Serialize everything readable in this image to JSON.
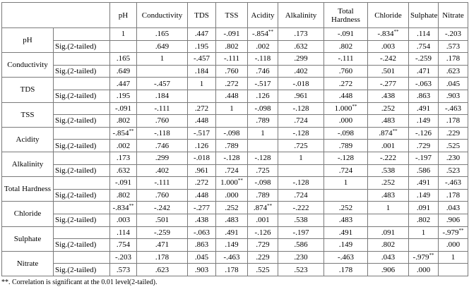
{
  "table": {
    "columns": [
      "pH",
      "Conductivity",
      "TDS",
      "TSS",
      "Acidity",
      "Alkalinity",
      "Total Hardness",
      "Chloride",
      "Sulphate",
      "Nitrate"
    ],
    "rows": [
      {
        "label": "pH",
        "sig_label": "Sig.(2-tailed)",
        "correlation": [
          "1",
          ".165",
          ".447",
          "-.091",
          {
            "text": "-.854",
            "mark": "**"
          },
          ".173",
          "-.091",
          {
            "text": "-.834",
            "mark": "**"
          },
          ".114",
          "-.203"
        ],
        "significance": [
          null,
          ".649",
          ".195",
          ".802",
          ".002",
          ".632",
          ".802",
          ".003",
          ".754",
          ".573"
        ]
      },
      {
        "label": "Conductivity",
        "sig_label": "Sig.(2-tailed)",
        "correlation": [
          ".165",
          "1",
          "-.457",
          "-.111",
          "-.118",
          ".299",
          "-.111",
          "-.242",
          "-.259",
          ".178"
        ],
        "significance": [
          ".649",
          null,
          ".184",
          ".760",
          ".746",
          ".402",
          ".760",
          ".501",
          ".471",
          ".623"
        ]
      },
      {
        "label": "TDS",
        "sig_label": "Sig.(2-tailed)",
        "correlation": [
          ".447",
          "-.457",
          "1",
          ".272",
          "-.517",
          "-.018",
          ".272",
          "-.277",
          "-.063",
          ".045"
        ],
        "significance": [
          ".195",
          ".184",
          null,
          ".448",
          ".126",
          ".961",
          ".448",
          ".438",
          ".863",
          ".903"
        ]
      },
      {
        "label": "TSS",
        "sig_label": "Sig.(2-tailed)",
        "correlation": [
          "-.091",
          "-.111",
          ".272",
          "1",
          "-.098",
          "-.128",
          {
            "text": "1.000",
            "mark": "**"
          },
          ".252",
          ".491",
          "-.463"
        ],
        "significance": [
          ".802",
          ".760",
          ".448",
          null,
          ".789",
          ".724",
          ".000",
          ".483",
          ".149",
          ".178"
        ]
      },
      {
        "label": "Acidity",
        "sig_label": "Sig.(2-tailed)",
        "correlation": [
          {
            "text": "-.854",
            "mark": "**"
          },
          "-.118",
          "-.517",
          "-.098",
          "1",
          "-.128",
          "-.098",
          {
            "text": ".874",
            "mark": "**"
          },
          "-.126",
          ".229"
        ],
        "significance": [
          ".002",
          ".746",
          ".126",
          ".789",
          null,
          ".725",
          ".789",
          ".001",
          ".729",
          ".525"
        ]
      },
      {
        "label": "Alkalinity",
        "sig_label": "Sig.(2-tailed)",
        "correlation": [
          ".173",
          ".299",
          "-.018",
          "-.128",
          "-.128",
          "1",
          "-.128",
          "-.222",
          "-.197",
          ".230"
        ],
        "significance": [
          ".632",
          ".402",
          ".961",
          ".724",
          ".725",
          null,
          ".724",
          ".538",
          ".586",
          ".523"
        ]
      },
      {
        "label": "Total Hardness",
        "sig_label": "Sig.(2-tailed)",
        "correlation": [
          "-.091",
          "-.111",
          ".272",
          {
            "text": "1.000",
            "mark": "**"
          },
          "-.098",
          "-.128",
          "1",
          ".252",
          ".491",
          "-.463"
        ],
        "significance": [
          ".802",
          ".760",
          ".448",
          ".000",
          ".789",
          ".724",
          null,
          ".483",
          ".149",
          ".178"
        ]
      },
      {
        "label": "Chloride",
        "sig_label": "Sig.(2-tailed)",
        "correlation": [
          {
            "text": "-.834",
            "mark": "**"
          },
          "-.242",
          "-.277",
          ".252",
          {
            "text": ".874",
            "mark": "**"
          },
          "-.222",
          ".252",
          "1",
          ".091",
          ".043"
        ],
        "significance": [
          ".003",
          ".501",
          ".438",
          ".483",
          ".001",
          ".538",
          ".483",
          null,
          ".802",
          ".906"
        ]
      },
      {
        "label": "Sulphate",
        "sig_label": "Sig.(2-tailed)",
        "correlation": [
          ".114",
          "-.259",
          "-.063",
          ".491",
          "-.126",
          "-.197",
          ".491",
          ".091",
          "1",
          {
            "text": "-.979",
            "mark": "**"
          }
        ],
        "significance": [
          ".754",
          ".471",
          ".863",
          ".149",
          ".729",
          ".586",
          ".149",
          ".802",
          null,
          ".000"
        ]
      },
      {
        "label": "Nitrate",
        "sig_label": "Sig.(2-tailed)",
        "correlation": [
          "-.203",
          ".178",
          ".045",
          "-.463",
          ".229",
          ".230",
          "-.463",
          ".043",
          {
            "text": "-.979",
            "mark": "**"
          },
          "1"
        ],
        "significance": [
          ".573",
          ".623",
          ".903",
          ".178",
          ".525",
          ".523",
          ".178",
          ".906",
          ".000",
          null
        ]
      }
    ],
    "footnote": "**. Correlation is significant at the 0.01 level(2-tailed)."
  }
}
